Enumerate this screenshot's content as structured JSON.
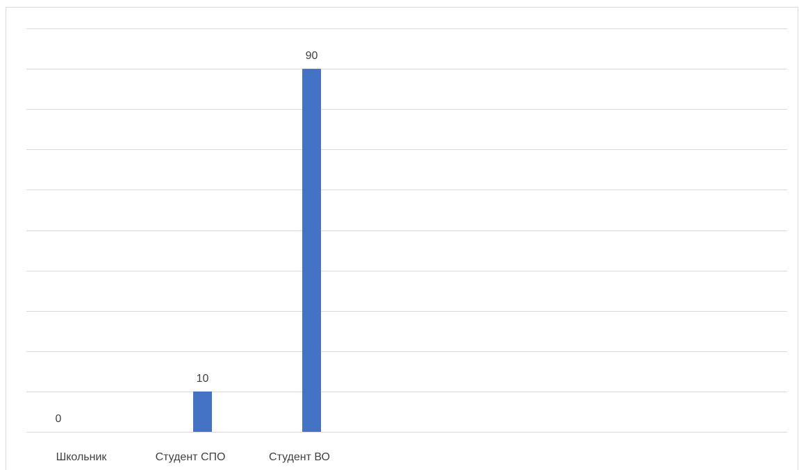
{
  "chart_data": {
    "type": "bar",
    "categories": [
      "Школьник",
      "Студент СПО",
      "Студент ВО"
    ],
    "values": [
      0,
      10,
      90
    ],
    "data_labels": [
      "0",
      "10",
      "90"
    ],
    "ylim": [
      0,
      100
    ],
    "ytick_step": 10,
    "grid": true,
    "legend": "none",
    "bar_color": "#4472c4",
    "gridline_color": "#d9d9d9"
  }
}
